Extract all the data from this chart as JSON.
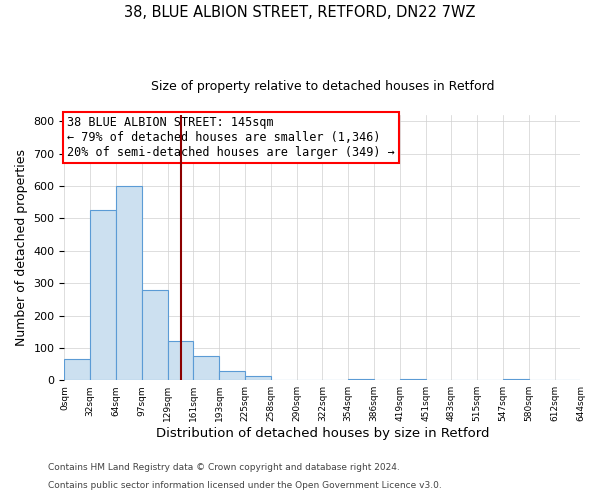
{
  "title": "38, BLUE ALBION STREET, RETFORD, DN22 7WZ",
  "subtitle": "Size of property relative to detached houses in Retford",
  "xlabel": "Distribution of detached houses by size in Retford",
  "ylabel": "Number of detached properties",
  "footer_line1": "Contains HM Land Registry data © Crown copyright and database right 2024.",
  "footer_line2": "Contains public sector information licensed under the Open Government Licence v3.0.",
  "bin_edges": [
    0,
    32,
    64,
    97,
    129,
    161,
    193,
    225,
    258,
    290,
    322,
    354,
    386,
    419,
    451,
    483,
    515,
    547,
    580,
    612,
    644
  ],
  "bin_labels": [
    "0sqm",
    "32sqm",
    "64sqm",
    "97sqm",
    "129sqm",
    "161sqm",
    "193sqm",
    "225sqm",
    "258sqm",
    "290sqm",
    "322sqm",
    "354sqm",
    "386sqm",
    "419sqm",
    "451sqm",
    "483sqm",
    "515sqm",
    "547sqm",
    "580sqm",
    "612sqm",
    "644sqm"
  ],
  "counts": [
    65,
    525,
    600,
    280,
    120,
    75,
    28,
    12,
    0,
    0,
    0,
    5,
    0,
    3,
    0,
    0,
    0,
    3,
    0,
    0
  ],
  "bar_facecolor": "#cce0f0",
  "bar_edgecolor": "#5b9bd5",
  "vline_x": 145,
  "vline_color": "#8b0000",
  "annotation_text_lines": [
    "38 BLUE ALBION STREET: 145sqm",
    "← 79% of detached houses are smaller (1,346)",
    "20% of semi-detached houses are larger (349) →"
  ],
  "ylim": [
    0,
    820
  ],
  "yticks": [
    0,
    100,
    200,
    300,
    400,
    500,
    600,
    700,
    800
  ],
  "background_color": "#ffffff",
  "grid_color": "#d0d0d0",
  "title_fontsize": 10.5,
  "subtitle_fontsize": 9,
  "ann_fontsize": 8.5
}
